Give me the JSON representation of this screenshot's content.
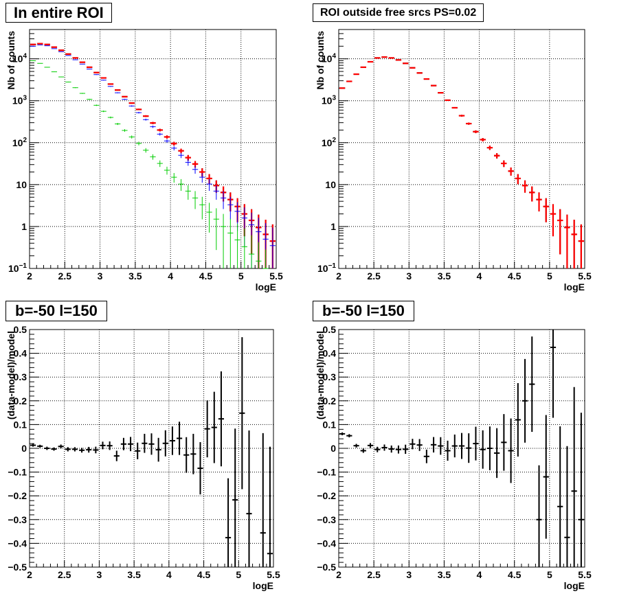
{
  "chart_data": [
    {
      "type": "line",
      "panel_title": "In entire ROI",
      "xlabel": "logE",
      "ylabel": "Nb of counts",
      "xlim": [
        2,
        5.5
      ],
      "ylim": [
        0.1,
        50000
      ],
      "yscale": "log",
      "grid": true,
      "x_ticks": [
        "2",
        "2.5",
        "3",
        "3.5",
        "4",
        "4.5",
        "5",
        "5.5"
      ],
      "y_ticks": [
        {
          "value": 0.1,
          "base": "10",
          "exp": "−1"
        },
        {
          "value": 1,
          "label": "1"
        },
        {
          "value": 10,
          "label": "10"
        },
        {
          "value": 100,
          "base": "10",
          "exp": "2"
        },
        {
          "value": 1000,
          "base": "10",
          "exp": "3"
        },
        {
          "value": 10000,
          "base": "10",
          "exp": "4"
        }
      ],
      "x": [
        2.05,
        2.15,
        2.25,
        2.35,
        2.45,
        2.55,
        2.65,
        2.75,
        2.85,
        2.95,
        3.05,
        3.15,
        3.25,
        3.35,
        3.45,
        3.55,
        3.65,
        3.75,
        3.85,
        3.95,
        4.05,
        4.15,
        4.25,
        4.35,
        4.45,
        4.55,
        4.65,
        4.75,
        4.85,
        4.95,
        5.05,
        5.15,
        5.25,
        5.35,
        5.45
      ],
      "series": [
        {
          "color": "#000000",
          "values": [
            22000,
            23000,
            22000,
            19000,
            16000,
            13000,
            10500,
            8300,
            6300,
            4700,
            3500,
            2500,
            1800,
            1250,
            880,
            620,
            430,
            295,
            200,
            137,
            95,
            64,
            44,
            31,
            20,
            14,
            9.5,
            6.5,
            4.4,
            3.0,
            2.0,
            1.4,
            0.95,
            0.65,
            0.45
          ]
        },
        {
          "color": "#ff0000",
          "values": [
            22000,
            23000,
            22000,
            19000,
            16000,
            13000,
            10500,
            8300,
            6300,
            4700,
            3500,
            2500,
            1800,
            1250,
            880,
            620,
            430,
            295,
            200,
            137,
            95,
            64,
            44,
            31,
            20,
            14,
            9.5,
            6.5,
            4.4,
            3.0,
            2.0,
            1.4,
            0.95,
            0.65,
            0.45
          ]
        },
        {
          "color": "#0000ff",
          "values": [
            20000,
            21500,
            20500,
            17500,
            14800,
            12000,
            9500,
            7500,
            5700,
            4200,
            3100,
            2200,
            1550,
            1080,
            750,
            520,
            355,
            240,
            160,
            110,
            74,
            50,
            34,
            23,
            15,
            10.3,
            7.0,
            4.8,
            3.3,
            2.3,
            1.6,
            1.1,
            0.75,
            0.5,
            0.35
          ]
        },
        {
          "color": "#00cc00",
          "values": [
            9000,
            7800,
            6300,
            4900,
            3700,
            2800,
            2050,
            1500,
            1080,
            780,
            560,
            400,
            280,
            196,
            137,
            96,
            66,
            46,
            32,
            22,
            15,
            10.3,
            7.0,
            4.8,
            3.3,
            2.2,
            1.5,
            1.0,
            0.7,
            0.48,
            0.33,
            0.22,
            0.15,
            0.1,
            0.07
          ]
        }
      ]
    },
    {
      "type": "line",
      "panel_title": "ROI outside free srcs PS=0.02",
      "xlabel": "logE",
      "ylabel": "Nb of counts",
      "xlim": [
        2,
        5.5
      ],
      "ylim": [
        0.1,
        50000
      ],
      "yscale": "log",
      "grid": true,
      "x_ticks": [
        "2",
        "2.5",
        "3",
        "3.5",
        "4",
        "4.5",
        "5",
        "5.5"
      ],
      "y_ticks": [
        {
          "value": 0.1,
          "base": "10",
          "exp": "−1"
        },
        {
          "value": 1,
          "label": "1"
        },
        {
          "value": 10,
          "label": "10"
        },
        {
          "value": 100,
          "base": "10",
          "exp": "2"
        },
        {
          "value": 1000,
          "base": "10",
          "exp": "3"
        },
        {
          "value": 10000,
          "base": "10",
          "exp": "4"
        }
      ],
      "x": [
        2.05,
        2.15,
        2.25,
        2.35,
        2.45,
        2.55,
        2.65,
        2.75,
        2.85,
        2.95,
        3.05,
        3.15,
        3.25,
        3.35,
        3.45,
        3.55,
        3.65,
        3.75,
        3.85,
        3.95,
        4.05,
        4.15,
        4.25,
        4.35,
        4.45,
        4.55,
        4.65,
        4.75,
        4.85,
        4.95,
        5.05,
        5.15,
        5.25,
        5.35,
        5.45
      ],
      "series": [
        {
          "color": "#000000",
          "values": [
            2000,
            2900,
            4300,
            6300,
            8500,
            10500,
            11000,
            10500,
            9400,
            7800,
            6100,
            4600,
            3300,
            2300,
            1550,
            1030,
            680,
            440,
            285,
            183,
            118,
            76,
            49,
            32,
            21,
            14,
            9.5,
            6.5,
            4.4,
            3.0,
            2.0,
            1.4,
            0.95,
            0.65,
            0.45
          ]
        },
        {
          "color": "#ff0000",
          "values": [
            2000,
            2900,
            4300,
            6300,
            8500,
            10500,
            11000,
            10500,
            9400,
            7800,
            6100,
            4600,
            3300,
            2300,
            1550,
            1030,
            680,
            440,
            285,
            183,
            118,
            76,
            49,
            32,
            21,
            14,
            9.5,
            6.5,
            4.4,
            3.0,
            2.0,
            1.4,
            0.95,
            0.65,
            0.45
          ]
        }
      ]
    },
    {
      "type": "scatter",
      "panel_title": "b=-50 l=150",
      "xlabel": "logE",
      "ylabel": "(data-model)/model",
      "xlim": [
        2,
        5.5
      ],
      "ylim": [
        -0.5,
        0.5
      ],
      "grid": true,
      "x_ticks": [
        "2",
        "2.5",
        "3",
        "3.5",
        "4",
        "4.5",
        "5",
        "5.5"
      ],
      "y_ticks": [
        "−0.5",
        "−0.4",
        "−0.3",
        "−0.2",
        "−0.1",
        "0",
        "0.1",
        "0.2",
        "0.3",
        "0.4",
        "0.5"
      ],
      "x": [
        2.05,
        2.15,
        2.25,
        2.35,
        2.45,
        2.55,
        2.65,
        2.75,
        2.85,
        2.95,
        3.05,
        3.15,
        3.25,
        3.35,
        3.45,
        3.55,
        3.65,
        3.75,
        3.85,
        3.95,
        4.05,
        4.15,
        4.25,
        4.35,
        4.45,
        4.55,
        4.65,
        4.75,
        4.85,
        4.95,
        5.05,
        5.15,
        5.25,
        5.35,
        5.45
      ],
      "values": [
        0.013,
        0.009,
        0.0,
        -0.003,
        0.008,
        -0.004,
        -0.004,
        -0.008,
        -0.006,
        -0.007,
        0.012,
        0.011,
        -0.032,
        0.018,
        0.018,
        -0.011,
        0.021,
        0.018,
        -0.006,
        0.021,
        0.032,
        0.042,
        -0.028,
        -0.024,
        -0.084,
        0.082,
        0.088,
        0.124,
        -0.376,
        -0.217,
        0.148,
        -0.275,
        null,
        -0.356,
        -0.443
      ],
      "errors": [
        0.006,
        0.006,
        0.007,
        0.007,
        0.008,
        0.009,
        0.009,
        0.01,
        0.012,
        0.014,
        0.016,
        0.018,
        0.022,
        0.026,
        0.03,
        0.035,
        0.04,
        0.045,
        0.05,
        0.055,
        0.06,
        0.07,
        0.075,
        0.085,
        0.11,
        0.12,
        0.15,
        0.2,
        0.25,
        0.3,
        0.32,
        0.35,
        0.4,
        0.42,
        0.45
      ]
    },
    {
      "type": "scatter",
      "panel_title": "b=-50 l=150",
      "xlabel": "logE",
      "ylabel": "(data-model)/model",
      "xlim": [
        2,
        5.5
      ],
      "ylim": [
        -0.5,
        0.5
      ],
      "grid": true,
      "x_ticks": [
        "2",
        "2.5",
        "3",
        "3.5",
        "4",
        "4.5",
        "5",
        "5.5"
      ],
      "y_ticks": [
        "−0.5",
        "−0.4",
        "−0.3",
        "−0.2",
        "−0.1",
        "0",
        "0.1",
        "0.2",
        "0.3",
        "0.4",
        "0.5"
      ],
      "x": [
        2.05,
        2.15,
        2.25,
        2.35,
        2.45,
        2.55,
        2.65,
        2.75,
        2.85,
        2.95,
        3.05,
        3.15,
        3.25,
        3.35,
        3.45,
        3.55,
        3.65,
        3.75,
        3.85,
        3.95,
        4.05,
        4.15,
        4.25,
        4.35,
        4.45,
        4.55,
        4.65,
        4.75,
        4.85,
        4.95,
        5.05,
        5.15,
        5.25,
        5.35,
        5.45
      ],
      "values": [
        0.061,
        0.053,
        0.011,
        -0.01,
        0.012,
        -0.005,
        0.003,
        -0.003,
        -0.005,
        -0.004,
        0.018,
        0.014,
        -0.034,
        0.015,
        0.01,
        -0.01,
        0.01,
        0.01,
        0.001,
        0.02,
        -0.005,
        0.0,
        -0.02,
        0.025,
        -0.01,
        0.12,
        0.2,
        0.27,
        -0.3,
        -0.12,
        0.425,
        -0.245,
        -0.375,
        -0.18,
        -0.3
      ]
    }
  ]
}
